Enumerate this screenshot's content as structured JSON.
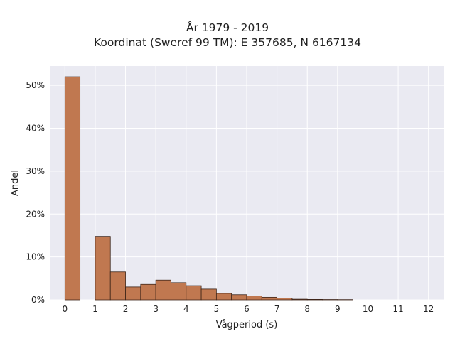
{
  "chart_data": {
    "type": "bar",
    "title_lines": [
      "År 1979 - 2019",
      "Koordinat (Sweref 99 TM): E 357685, N 6167134"
    ],
    "xlabel": "Vågperiod (s)",
    "ylabel": "Andel",
    "xlim": [
      -0.5,
      12.5
    ],
    "ylim": [
      0,
      54.5
    ],
    "x_ticks": [
      0,
      1,
      2,
      3,
      4,
      5,
      6,
      7,
      8,
      9,
      10,
      11,
      12
    ],
    "x_tick_labels": [
      "0",
      "1",
      "2",
      "3",
      "4",
      "5",
      "6",
      "7",
      "8",
      "9",
      "10",
      "11",
      "12"
    ],
    "y_ticks": [
      0,
      10,
      20,
      30,
      40,
      50
    ],
    "y_tick_labels": [
      "0%",
      "10%",
      "20%",
      "30%",
      "40%",
      "50%"
    ],
    "grid": true,
    "bin_width": 0.5,
    "bins": [
      {
        "start": 0.0,
        "value": 52.0
      },
      {
        "start": 1.0,
        "value": 14.8
      },
      {
        "start": 1.5,
        "value": 6.5
      },
      {
        "start": 2.0,
        "value": 3.0
      },
      {
        "start": 2.5,
        "value": 3.6
      },
      {
        "start": 3.0,
        "value": 4.6
      },
      {
        "start": 3.5,
        "value": 4.0
      },
      {
        "start": 4.0,
        "value": 3.3
      },
      {
        "start": 4.5,
        "value": 2.5
      },
      {
        "start": 5.0,
        "value": 1.5
      },
      {
        "start": 5.5,
        "value": 1.2
      },
      {
        "start": 6.0,
        "value": 0.9
      },
      {
        "start": 6.5,
        "value": 0.6
      },
      {
        "start": 7.0,
        "value": 0.4
      },
      {
        "start": 7.5,
        "value": 0.15
      },
      {
        "start": 8.0,
        "value": 0.1
      },
      {
        "start": 8.5,
        "value": 0.07
      },
      {
        "start": 9.0,
        "value": 0.05
      }
    ],
    "colors": {
      "bar_fill": "#c07850",
      "bar_stroke": "#3d2418",
      "plot_background": "#eaeaf2",
      "grid": "#ffffff"
    }
  }
}
